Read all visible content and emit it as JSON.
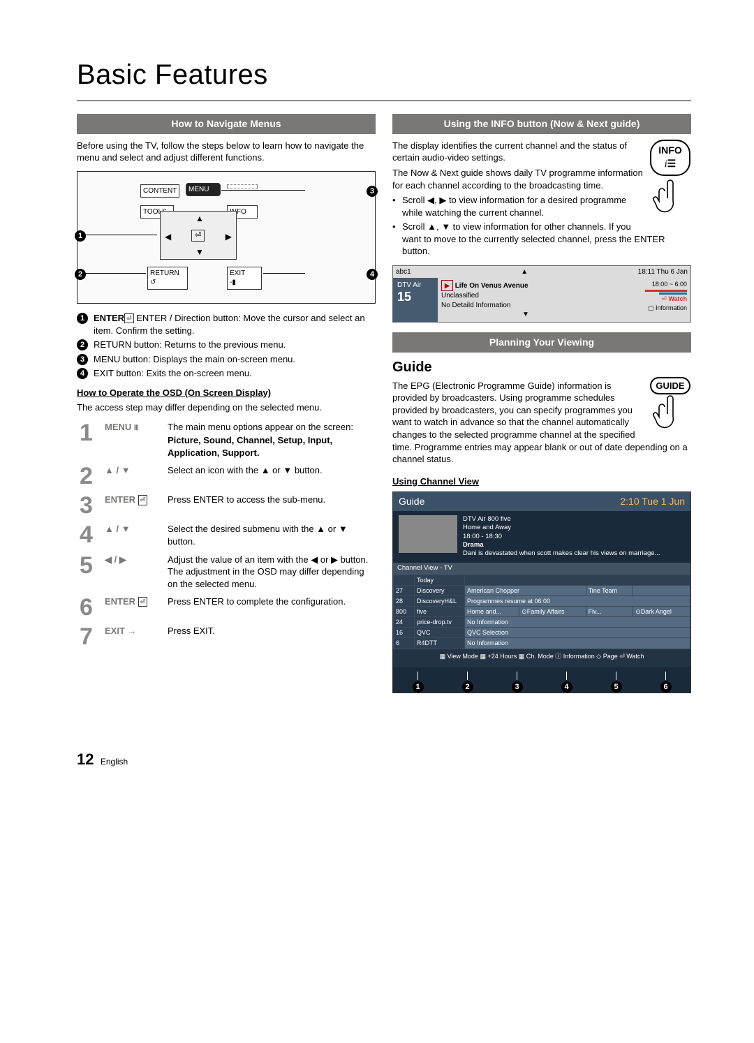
{
  "page": {
    "title": "Basic Features",
    "number": "12",
    "language": "English"
  },
  "left": {
    "section_title": "How to Navigate Menus",
    "intro": "Before using the TV, follow the steps below to learn how to navigate the menu and select and adjust different functions.",
    "remote": {
      "content": "CONTENT",
      "menu": "MENU",
      "tools": "TOOLS",
      "info": "INFO",
      "return": "RETURN",
      "exit": "EXIT"
    },
    "buttons_list": [
      "ENTER / Direction button: Move the cursor and select an item. Confirm the setting.",
      "RETURN button: Returns to the previous menu.",
      "MENU button: Displays the main on-screen menu.",
      "EXIT button: Exits the on-screen menu."
    ],
    "osd_head": "How to Operate the OSD (On Screen Display)",
    "osd_note": "The access step may differ depending on the selected menu.",
    "steps": [
      {
        "n": "1",
        "key": "MENU",
        "txt": "The main menu options appear on the screen:",
        "txt2": "Picture, Sound, Channel, Setup, Input, Application, Support."
      },
      {
        "n": "2",
        "key": "▲ / ▼",
        "txt": "Select an icon with the ▲ or ▼ button.",
        "txt2": ""
      },
      {
        "n": "3",
        "key": "ENTER",
        "txt": "Press ENTER to access the sub-menu.",
        "txt2": ""
      },
      {
        "n": "4",
        "key": "▲ / ▼",
        "txt": "Select the desired submenu with the ▲ or ▼ button.",
        "txt2": ""
      },
      {
        "n": "5",
        "key": "◀ / ▶",
        "txt": "Adjust the value of an item with the ◀ or ▶ button. The adjustment in the OSD may differ depending on the selected menu.",
        "txt2": ""
      },
      {
        "n": "6",
        "key": "ENTER",
        "txt": "Press ENTER to complete the configuration.",
        "txt2": ""
      },
      {
        "n": "7",
        "key": "EXIT →",
        "txt": "Press EXIT.",
        "txt2": ""
      }
    ]
  },
  "right": {
    "info_section": "Using the INFO button (Now & Next guide)",
    "info_btn": "INFO",
    "info_p1": "The display identifies the current channel and the status of certain audio-video settings.",
    "info_p2": "The Now & Next guide shows daily TV programme information for each channel according to the broadcasting time.",
    "info_bul1": "Scroll ◀, ▶ to view information for a desired programme while watching the current channel.",
    "info_bul2": "Scroll ▲, ▼ to view information for other channels. If you want to move to the currently selected channel, press the ENTER button.",
    "now_box": {
      "ch": "abc1",
      "time": "18:11 Thu 6 Jan",
      "source": "DTV Air",
      "num": "15",
      "prog": "Life On Venus Avenue",
      "cls": "Unclassified",
      "det": "No Detaild Information",
      "slot": "18:00 ~ 6:00",
      "watch": "Watch",
      "inf": "Information"
    },
    "plan_section": "Planning Your Viewing",
    "guide_h": "Guide",
    "guide_btn": "GUIDE",
    "guide_p": "The EPG (Electronic Programme Guide) information is provided by broadcasters. Using programme schedules provided by broadcasters, you can specify programmes you want to watch in advance so that the channel automatically changes to the selected programme channel at the specified time. Programme entries may appear blank or out of date depending on a channel status.",
    "chview_h": "Using Channel View",
    "gs": {
      "title": "Guide",
      "clock": "2:10 Tue 1 Jun",
      "top_ch": "DTV Air 800 five",
      "top_prog": "Home and Away",
      "top_time": "18:00 - 18:30",
      "top_genre": "Drama",
      "top_desc": "Dani is devastated when scott makes clear his views on marriage...",
      "tabs": "Channel View - TV",
      "today": "Today",
      "rows": [
        {
          "n": "27",
          "c": "Discovery",
          "p": [
            "American Chopper",
            "",
            "Tine Team",
            ""
          ]
        },
        {
          "n": "28",
          "c": "DiscoveryH&L",
          "p": [
            "Programmes resume at 06:00",
            "",
            "",
            ""
          ]
        },
        {
          "n": "800",
          "c": "five",
          "p": [
            "Home and...",
            "⊙Family Affairs",
            "Fiv...",
            "⊙Dark Angel"
          ]
        },
        {
          "n": "24",
          "c": "price-drop.tv",
          "p": [
            "No Information",
            "",
            "",
            ""
          ]
        },
        {
          "n": "16",
          "c": "QVC",
          "p": [
            "QVC Selection",
            "",
            "",
            ""
          ]
        },
        {
          "n": "6",
          "c": "R4DTT",
          "p": [
            "No Information",
            "",
            "",
            ""
          ]
        }
      ],
      "footer": "▦ View Mode ▦ +24 Hours ▦ Ch. Mode  ⓘ Information  ◇ Page  ⏎ Watch"
    }
  }
}
